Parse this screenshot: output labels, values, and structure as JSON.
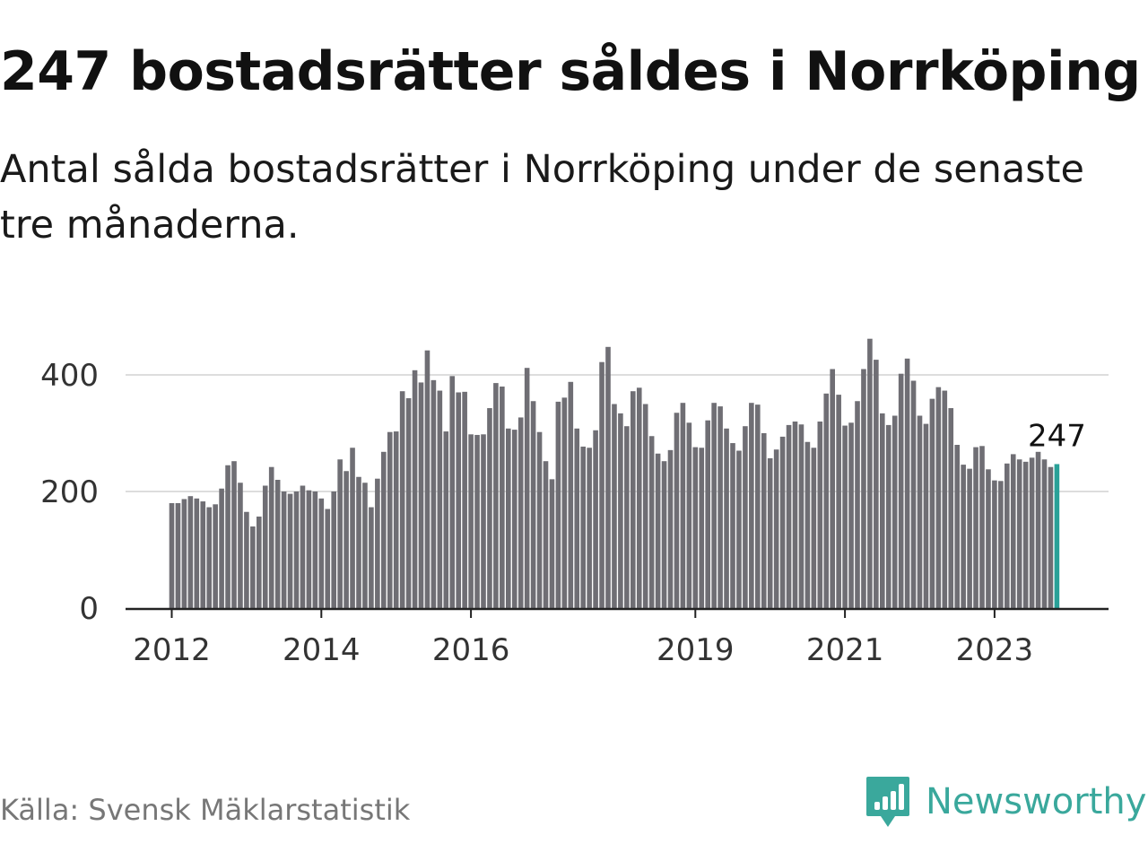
{
  "header": {
    "title": "247 bostadsrätter såldes i Norrköping",
    "subtitle": "Antal sålda bostadsrätter i Norrköping under de senaste tre månaderna."
  },
  "footer": {
    "source": "Källa: Svensk Mäklarstatistik",
    "brand": "Newsworthy",
    "brand_icon": "newsworthy-logo-icon"
  },
  "colors": {
    "bar": "#6f6e74",
    "highlight": "#2aa198",
    "grid": "#dddddd",
    "axis": "#222222",
    "brand": "#3aa89c"
  },
  "chart_data": {
    "type": "bar",
    "title": "247 bostadsrätter såldes i Norrköping",
    "xlabel": "",
    "ylabel": "",
    "ylim": [
      0,
      500
    ],
    "yticks": [
      0,
      200,
      400
    ],
    "xtick_labels": [
      "2012",
      "2014",
      "2016",
      "2019",
      "2021",
      "2023"
    ],
    "grid": true,
    "start": "2012-01",
    "end": "2023-12",
    "highlight_label": "247",
    "values": [
      180,
      180,
      187,
      192,
      188,
      183,
      173,
      178,
      205,
      245,
      252,
      215,
      165,
      140,
      157,
      210,
      242,
      220,
      200,
      196,
      200,
      210,
      202,
      200,
      188,
      170,
      200,
      255,
      235,
      275,
      225,
      215,
      173,
      222,
      268,
      302,
      303,
      372,
      360,
      408,
      387,
      442,
      391,
      373,
      303,
      398,
      370,
      371,
      298,
      297,
      298,
      343,
      386,
      380,
      308,
      306,
      327,
      412,
      355,
      302,
      252,
      221,
      354,
      361,
      388,
      308,
      277,
      275,
      305,
      422,
      448,
      350,
      334,
      312,
      372,
      378,
      350,
      295,
      265,
      252,
      271,
      335,
      352,
      318,
      276,
      275,
      322,
      352,
      346,
      308,
      283,
      270,
      312,
      352,
      349,
      300,
      257,
      272,
      294,
      314,
      320,
      315,
      285,
      275,
      320,
      368,
      410,
      366,
      313,
      318,
      355,
      410,
      462,
      426,
      334,
      314,
      330,
      402,
      428,
      390,
      330,
      316,
      359,
      379,
      373,
      343,
      280,
      246,
      239,
      276,
      278,
      238,
      219,
      218,
      248,
      264,
      255,
      251,
      258,
      268,
      255,
      242,
      247
    ]
  }
}
